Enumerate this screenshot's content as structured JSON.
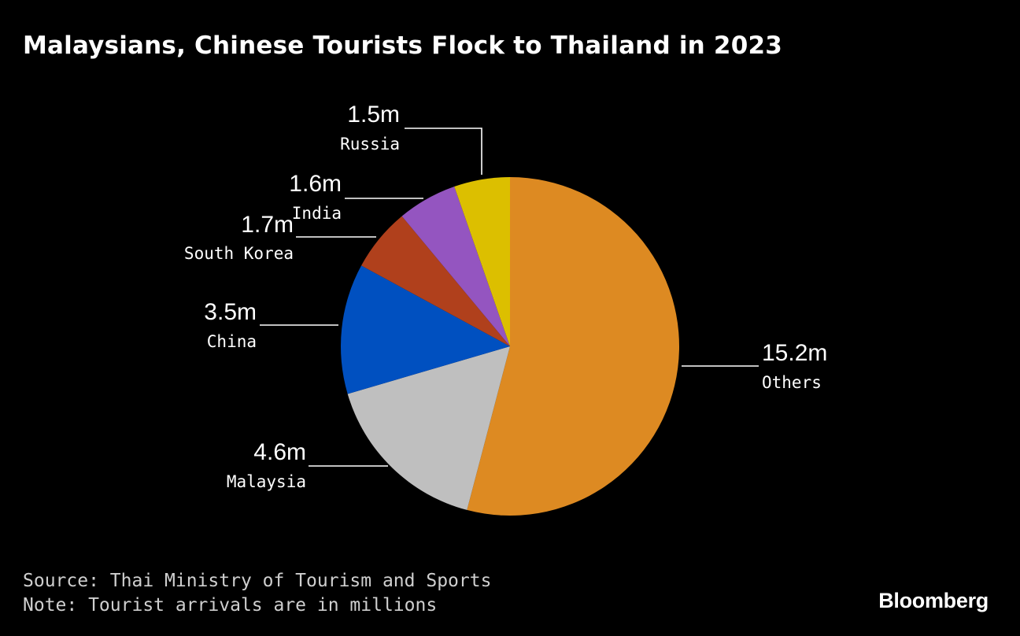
{
  "header": {
    "title": "Malaysians, Chinese Tourists Flock to Thailand in 2023"
  },
  "footer": {
    "source": "Source: Thai Ministry of Tourism and Sports",
    "note": "Note: Tourist arrivals are in millions",
    "brand": "Bloomberg"
  },
  "chart_data": {
    "type": "pie",
    "title": "Malaysians, Chinese Tourists Flock to Thailand in 2023",
    "unit": "millions",
    "slices": [
      {
        "name": "Others",
        "value": 15.2,
        "label": "15.2m",
        "color": "#dd8a22"
      },
      {
        "name": "Malaysia",
        "value": 4.6,
        "label": "4.6m",
        "color": "#bfbfbf"
      },
      {
        "name": "China",
        "value": 3.5,
        "label": "3.5m",
        "color": "#0050c0"
      },
      {
        "name": "South Korea",
        "value": 1.7,
        "label": "1.7m",
        "color": "#b0401c"
      },
      {
        "name": "India",
        "value": 1.6,
        "label": "1.6m",
        "color": "#9455c0"
      },
      {
        "name": "Russia",
        "value": 1.5,
        "label": "1.5m",
        "color": "#dcbf00"
      }
    ],
    "start_angle": "12 o'clock",
    "direction": "clockwise"
  }
}
